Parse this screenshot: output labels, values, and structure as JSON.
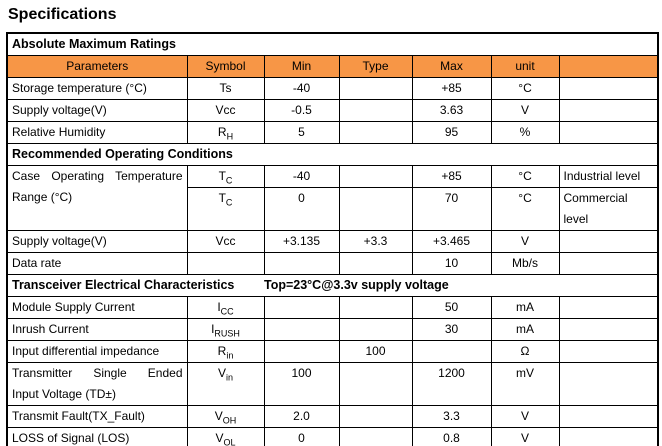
{
  "title": "Specifications",
  "colors": {
    "header_bg": "#F79646",
    "border": "#000000",
    "text": "#000000"
  },
  "table": {
    "columns": [
      "Parameters",
      "Symbol",
      "Min",
      "Type",
      "Max",
      "unit",
      ""
    ],
    "rows": [
      {
        "type": "section",
        "cells": [
          {
            "text": "Absolute Maximum Ratings"
          }
        ]
      },
      {
        "type": "header"
      },
      {
        "type": "body",
        "cells": [
          {
            "text": "Storage temperature (°C)"
          },
          {
            "text": "Ts"
          },
          {
            "text": "-40"
          },
          {
            "text": ""
          },
          {
            "text": "+85"
          },
          {
            "text": "°C"
          },
          {
            "text": ""
          }
        ]
      },
      {
        "type": "body",
        "cells": [
          {
            "text": "Supply voltage(V)"
          },
          {
            "text": "Vcc"
          },
          {
            "text": "-0.5"
          },
          {
            "text": ""
          },
          {
            "text": "3.63"
          },
          {
            "text": "V"
          },
          {
            "text": ""
          }
        ]
      },
      {
        "type": "body",
        "cells": [
          {
            "text": "Relative Humidity"
          },
          {
            "base": "R",
            "sub": "H"
          },
          {
            "text": "5"
          },
          {
            "text": ""
          },
          {
            "text": "95"
          },
          {
            "text": "%"
          },
          {
            "text": ""
          }
        ]
      },
      {
        "type": "section",
        "cells": [
          {
            "text": "Recommended Operating Conditions"
          }
        ]
      },
      {
        "type": "body",
        "cells": [
          {
            "lines": [
              "Case Operating Temperature",
              "Range (°C)"
            ],
            "justify": true,
            "rowspan": 2
          },
          {
            "base": "T",
            "sub": "C"
          },
          {
            "text": "-40"
          },
          {
            "text": ""
          },
          {
            "text": "+85"
          },
          {
            "text": "°C"
          },
          {
            "text": "Industrial level"
          }
        ]
      },
      {
        "type": "body",
        "cells": [
          {
            "base": "T",
            "sub": "C"
          },
          {
            "text": "0"
          },
          {
            "text": ""
          },
          {
            "text": "70"
          },
          {
            "text": "°C"
          },
          {
            "lines": [
              "Commercial",
              "level"
            ]
          }
        ]
      },
      {
        "type": "body",
        "cells": [
          {
            "text": "Supply voltage(V)"
          },
          {
            "text": "Vcc"
          },
          {
            "text": "+3.135"
          },
          {
            "text": "+3.3"
          },
          {
            "text": "+3.465"
          },
          {
            "text": "V"
          },
          {
            "text": ""
          }
        ]
      },
      {
        "type": "body",
        "cells": [
          {
            "text": "Data rate"
          },
          {
            "text": ""
          },
          {
            "text": ""
          },
          {
            "text": ""
          },
          {
            "text": "10"
          },
          {
            "text": "Mb/s"
          },
          {
            "text": ""
          }
        ]
      },
      {
        "type": "section",
        "cells": [
          {
            "text": "Transceiver Electrical Characteristics"
          },
          {
            "text": "Top=23°C@3.3v supply voltage"
          }
        ]
      },
      {
        "type": "body",
        "cells": [
          {
            "text": "Module Supply Current"
          },
          {
            "base": "I",
            "sub": "CC"
          },
          {
            "text": ""
          },
          {
            "text": ""
          },
          {
            "text": "50"
          },
          {
            "text": "mA"
          },
          {
            "text": ""
          }
        ]
      },
      {
        "type": "body",
        "cells": [
          {
            "text": "Inrush Current"
          },
          {
            "base": "I",
            "sub": "RUSH"
          },
          {
            "text": ""
          },
          {
            "text": ""
          },
          {
            "text": "30"
          },
          {
            "text": "mA"
          },
          {
            "text": ""
          }
        ]
      },
      {
        "type": "body",
        "cells": [
          {
            "text": "Input differential impedance"
          },
          {
            "base": "R",
            "sub": "in"
          },
          {
            "text": ""
          },
          {
            "text": "100"
          },
          {
            "text": ""
          },
          {
            "text": "Ω"
          },
          {
            "text": ""
          }
        ]
      },
      {
        "type": "body",
        "cells": [
          {
            "lines": [
              "Transmitter Single Ended",
              "Input Voltage (TD±)"
            ],
            "justify": true
          },
          {
            "base": "V",
            "sub": "in"
          },
          {
            "text": "100"
          },
          {
            "text": ""
          },
          {
            "text": "1200"
          },
          {
            "text": "mV"
          },
          {
            "text": ""
          }
        ]
      },
      {
        "type": "body",
        "cells": [
          {
            "text": "Transmit Fault(TX_Fault)"
          },
          {
            "base": "V",
            "sub": "OH"
          },
          {
            "text": "2.0"
          },
          {
            "text": ""
          },
          {
            "text": "3.3"
          },
          {
            "text": "V"
          },
          {
            "text": ""
          }
        ]
      },
      {
        "type": "body",
        "cells": [
          {
            "text": "LOSS of Signal (LOS)"
          },
          {
            "base": "V",
            "sub": "OL"
          },
          {
            "text": "0"
          },
          {
            "text": ""
          },
          {
            "text": "0.8"
          },
          {
            "text": "V"
          },
          {
            "text": ""
          }
        ]
      }
    ]
  }
}
